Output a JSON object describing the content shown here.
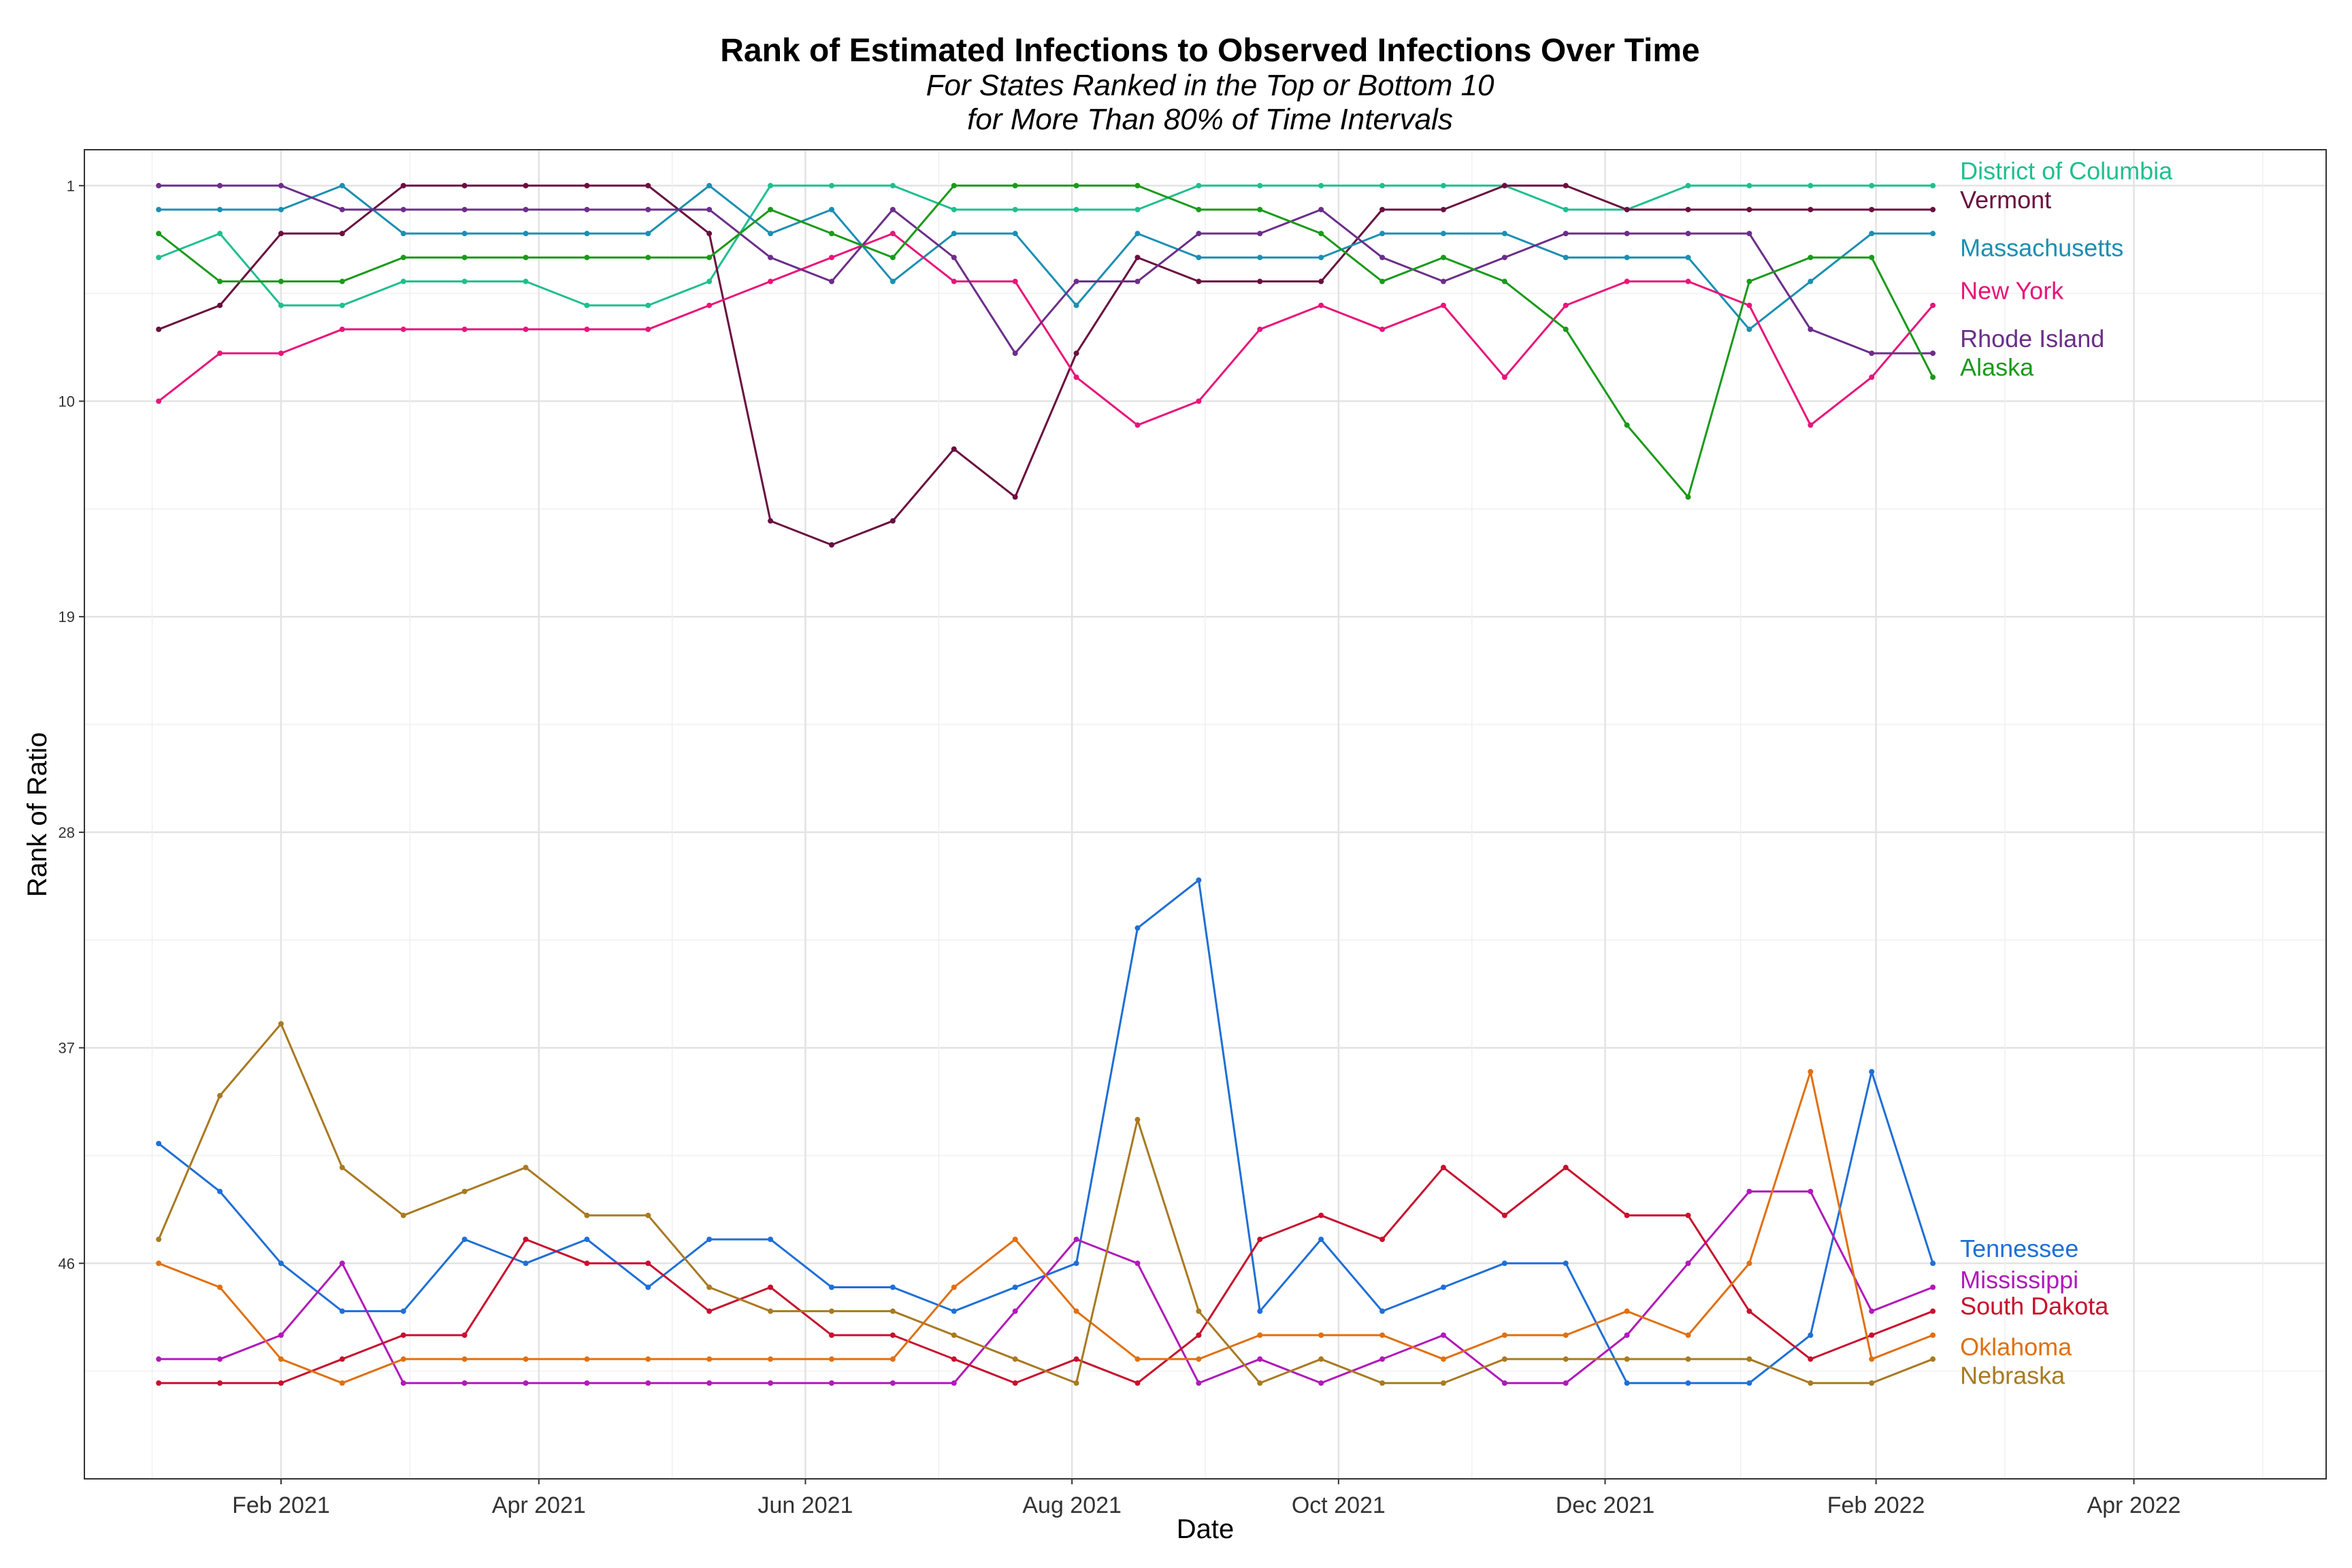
{
  "chart_data": {
    "type": "line",
    "title": "Rank of Estimated Infections to Observed Infections Over Time",
    "subtitle_lines": [
      "For States Ranked in the Top or Bottom 10",
      "for More Than 80% of Time Intervals"
    ],
    "xlabel": "Date",
    "ylabel": "Rank of Ratio",
    "y_reversed": true,
    "ylim": [
      -0.5,
      55
    ],
    "y_ticks": [
      1,
      10,
      19,
      28,
      37,
      46
    ],
    "xlim": [
      "2020-12-18",
      "2022-05-15"
    ],
    "x_ticks": [
      {
        "date": "2021-02-01",
        "label": "Feb 2021"
      },
      {
        "date": "2021-04-01",
        "label": "Apr 2021"
      },
      {
        "date": "2021-06-01",
        "label": "Jun 2021"
      },
      {
        "date": "2021-08-01",
        "label": "Aug 2021"
      },
      {
        "date": "2021-10-01",
        "label": "Oct 2021"
      },
      {
        "date": "2021-12-01",
        "label": "Dec 2021"
      },
      {
        "date": "2022-02-01",
        "label": "Feb 2022"
      },
      {
        "date": "2022-04-01",
        "label": "Apr 2022"
      }
    ],
    "grid": true,
    "legend": "labels at right end of each line",
    "x": [
      "2021-01-04",
      "2021-01-18",
      "2021-02-01",
      "2021-02-15",
      "2021-03-01",
      "2021-03-15",
      "2021-03-29",
      "2021-04-12",
      "2021-04-26",
      "2021-05-10",
      "2021-05-24",
      "2021-06-07",
      "2021-06-21",
      "2021-07-05",
      "2021-07-19",
      "2021-08-02",
      "2021-08-16",
      "2021-08-30",
      "2021-09-13",
      "2021-09-27",
      "2021-10-11",
      "2021-10-25",
      "2021-11-08",
      "2021-11-22",
      "2021-12-06",
      "2021-12-20",
      "2022-01-03",
      "2022-01-17",
      "2022-01-31",
      "2022-02-14"
    ],
    "series": [
      {
        "name": "District of Columbia",
        "color": "#1fbf8f",
        "label_y": 0.4,
        "values": [
          4,
          3,
          6,
          6,
          5,
          5,
          5,
          6,
          6,
          5,
          1,
          1,
          1,
          2,
          2,
          2,
          2,
          1,
          1,
          1,
          1,
          1,
          1,
          2,
          2,
          1,
          1,
          1,
          1,
          1
        ]
      },
      {
        "name": "Vermont",
        "color": "#6a0f3f",
        "label_y": 1.6,
        "values": [
          7,
          6,
          3,
          3,
          1,
          1,
          1,
          1,
          1,
          3,
          15,
          16,
          15,
          12,
          14,
          8,
          4,
          5,
          5,
          5,
          2,
          2,
          1,
          1,
          2,
          2,
          2,
          2,
          2,
          2
        ]
      },
      {
        "name": "Massachusetts",
        "color": "#1b8fb2",
        "label_y": 3.6,
        "values": [
          2,
          2,
          2,
          1,
          3,
          3,
          3,
          3,
          3,
          1,
          3,
          2,
          5,
          3,
          3,
          6,
          3,
          4,
          4,
          4,
          3,
          3,
          3,
          4,
          4,
          4,
          7,
          5,
          3,
          3
        ]
      },
      {
        "name": "New York",
        "color": "#e8157a",
        "label_y": 5.4,
        "values": [
          10,
          8,
          8,
          7,
          7,
          7,
          7,
          7,
          7,
          6,
          5,
          4,
          3,
          5,
          5,
          9,
          11,
          10,
          7,
          6,
          7,
          6,
          9,
          6,
          5,
          5,
          6,
          11,
          9,
          6
        ]
      },
      {
        "name": "Rhode Island",
        "color": "#6c2e8a",
        "label_y": 7.4,
        "values": [
          1,
          1,
          1,
          2,
          2,
          2,
          2,
          2,
          2,
          2,
          4,
          5,
          2,
          4,
          8,
          5,
          5,
          3,
          3,
          2,
          4,
          5,
          4,
          3,
          3,
          3,
          3,
          7,
          8,
          8
        ]
      },
      {
        "name": "Alaska",
        "color": "#1a9a1a",
        "label_y": 8.6,
        "values": [
          3,
          5,
          5,
          5,
          4,
          4,
          4,
          4,
          4,
          4,
          2,
          3,
          4,
          1,
          1,
          1,
          1,
          2,
          2,
          3,
          5,
          4,
          5,
          7,
          11,
          14,
          5,
          4,
          4,
          9
        ]
      },
      {
        "name": "Tennessee",
        "color": "#1f6fd6",
        "label_y": 45.4,
        "values": [
          41,
          43,
          46,
          48,
          48,
          45,
          46,
          45,
          47,
          45,
          45,
          47,
          47,
          48,
          47,
          46,
          32,
          30,
          48,
          45,
          48,
          47,
          46,
          46,
          51,
          51,
          51,
          49,
          38,
          46
        ]
      },
      {
        "name": "Mississippi",
        "color": "#b01ab8",
        "label_y": 46.7,
        "values": [
          50,
          50,
          49,
          46,
          51,
          51,
          51,
          51,
          51,
          51,
          51,
          51,
          51,
          51,
          48,
          45,
          46,
          51,
          50,
          51,
          50,
          49,
          51,
          51,
          49,
          46,
          43,
          43,
          48,
          47
        ]
      },
      {
        "name": "South Dakota",
        "color": "#c8102e",
        "label_y": 47.8,
        "values": [
          51,
          51,
          51,
          50,
          49,
          49,
          45,
          46,
          46,
          48,
          47,
          49,
          49,
          50,
          51,
          50,
          51,
          49,
          45,
          44,
          45,
          42,
          44,
          42,
          44,
          44,
          48,
          50,
          49,
          48
        ]
      },
      {
        "name": "Oklahoma",
        "color": "#e07010",
        "label_y": 49.5,
        "values": [
          46,
          47,
          50,
          51,
          50,
          50,
          50,
          50,
          50,
          50,
          50,
          50,
          50,
          47,
          45,
          48,
          50,
          50,
          49,
          49,
          49,
          50,
          49,
          49,
          48,
          49,
          46,
          38,
          50,
          49
        ]
      },
      {
        "name": "Nebraska",
        "color": "#a87a22",
        "label_y": 50.7,
        "values": [
          45,
          39,
          36,
          42,
          44,
          43,
          42,
          44,
          44,
          47,
          48,
          48,
          48,
          49,
          50,
          51,
          40,
          48,
          51,
          50,
          51,
          51,
          50,
          50,
          50,
          50,
          50,
          51,
          51,
          50
        ]
      }
    ]
  }
}
